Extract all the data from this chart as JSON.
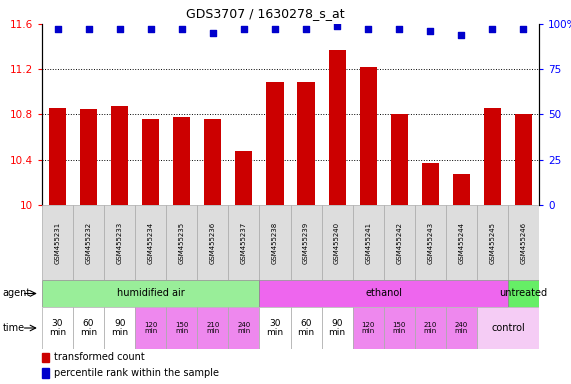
{
  "title": "GDS3707 / 1630278_s_at",
  "samples": [
    "GSM455231",
    "GSM455232",
    "GSM455233",
    "GSM455234",
    "GSM455235",
    "GSM455236",
    "GSM455237",
    "GSM455238",
    "GSM455239",
    "GSM455240",
    "GSM455241",
    "GSM455242",
    "GSM455243",
    "GSM455244",
    "GSM455245",
    "GSM455246"
  ],
  "bar_values": [
    10.86,
    10.85,
    10.87,
    10.76,
    10.78,
    10.76,
    10.48,
    11.09,
    11.09,
    11.37,
    11.22,
    10.8,
    10.37,
    10.27,
    10.86,
    10.8
  ],
  "percentile_values": [
    97,
    97,
    97,
    97,
    97,
    95,
    97,
    97,
    97,
    99,
    97,
    97,
    96,
    94,
    97,
    97
  ],
  "bar_color": "#cc0000",
  "percentile_color": "#0000cc",
  "ylim_left": [
    10.0,
    11.6
  ],
  "ylim_right": [
    0,
    100
  ],
  "yticks_left": [
    10.0,
    10.4,
    10.8,
    11.2,
    11.6
  ],
  "yticks_right": [
    0,
    25,
    50,
    75,
    100
  ],
  "ytick_labels_left": [
    "10",
    "10.4",
    "10.8",
    "11.2",
    "11.6"
  ],
  "ytick_labels_right": [
    "0",
    "25",
    "50",
    "75",
    "100%"
  ],
  "agent_groups": [
    {
      "label": "humidified air",
      "start": 0,
      "end": 7,
      "color": "#99ee99"
    },
    {
      "label": "ethanol",
      "start": 7,
      "end": 15,
      "color": "#ee66ee"
    },
    {
      "label": "untreated",
      "start": 15,
      "end": 16,
      "color": "#66ee66"
    }
  ],
  "time_colors_humidified": [
    "#ffffff",
    "#ffffff",
    "#ffffff",
    "#ee88ee",
    "#ee88ee",
    "#ee88ee",
    "#ee88ee"
  ],
  "time_colors_ethanol": [
    "#ffffff",
    "#ffffff",
    "#ffffff",
    "#ee88ee",
    "#ee88ee",
    "#ee88ee",
    "#ee88ee"
  ],
  "time_row_label": "time",
  "agent_row_label": "agent",
  "control_label": "control",
  "control_color": "#f5ccf5",
  "legend_bar_label": "transformed count",
  "legend_pct_label": "percentile rank within the sample",
  "bar_width": 0.55,
  "background": "#ffffff"
}
